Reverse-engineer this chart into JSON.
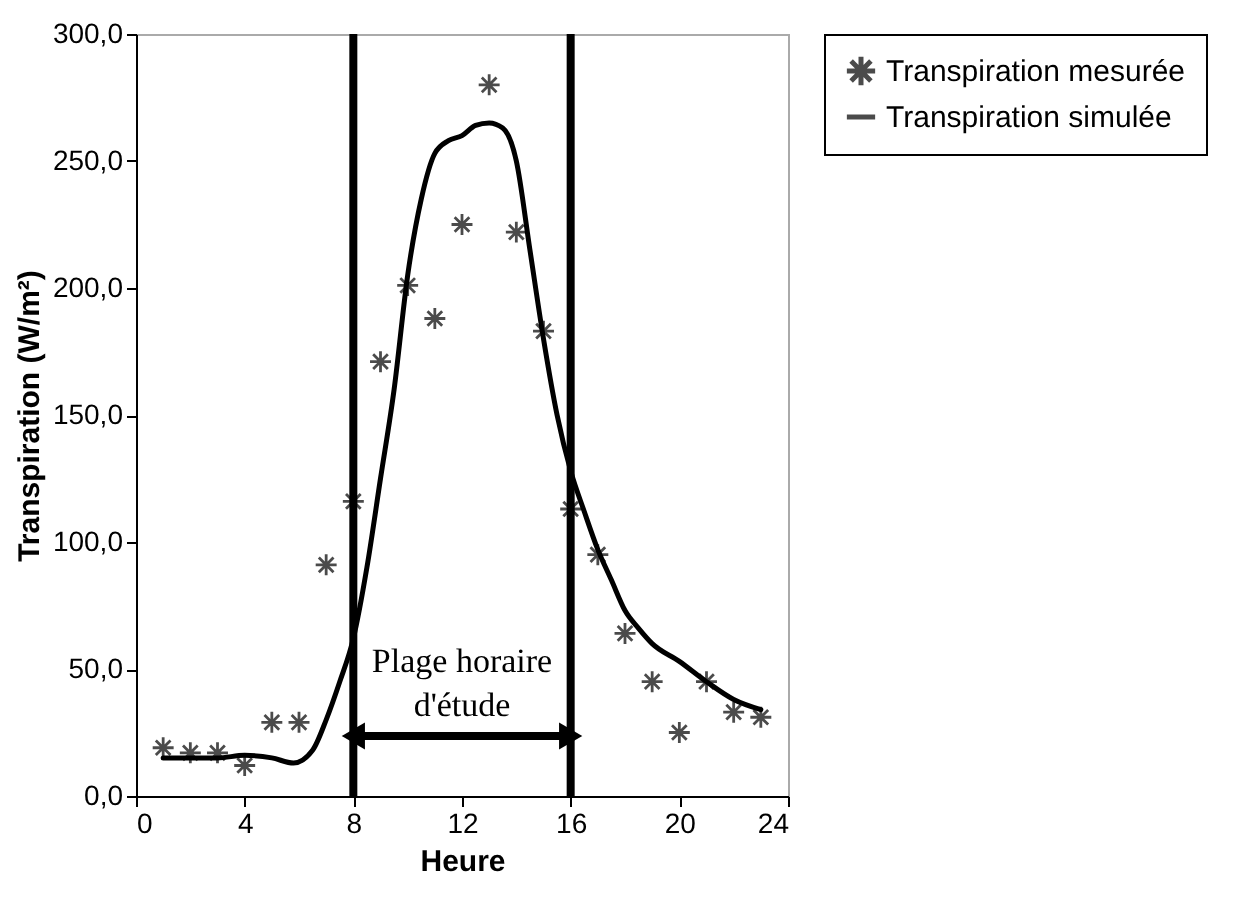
{
  "chart_data": {
    "type": "line",
    "xlabel": "Heure",
    "ylabel": "Transpiration (W/m²)",
    "xlim": [
      0,
      24
    ],
    "xticks": [
      0,
      4,
      8,
      12,
      16,
      20,
      24
    ],
    "ylim": [
      0,
      300
    ],
    "yticks": [
      {
        "value": 0,
        "label": "0,0"
      },
      {
        "value": 50,
        "label": "50,0"
      },
      {
        "value": 100,
        "label": "100,0"
      },
      {
        "value": 150,
        "label": "150,0"
      },
      {
        "value": 200,
        "label": "200,0"
      },
      {
        "value": 250,
        "label": "250,0"
      },
      {
        "value": 300,
        "label": "300,0"
      }
    ],
    "series": [
      {
        "name": "Transpiration mesurée",
        "type": "scatter",
        "marker": "cross",
        "color": "#000000",
        "x": [
          1,
          2,
          3,
          4,
          5,
          6,
          7,
          8,
          9,
          10,
          11,
          12,
          13,
          14,
          15,
          16,
          17,
          18,
          19,
          20,
          21,
          22,
          23
        ],
        "values": [
          19,
          17,
          17,
          12,
          29,
          29,
          91,
          116,
          171,
          201,
          188,
          225,
          280,
          222,
          183,
          113,
          95,
          64,
          45,
          25,
          45,
          33,
          31
        ]
      },
      {
        "name": "Transpiration simulée",
        "color": "#000000",
        "x": [
          1,
          2,
          3,
          4,
          5,
          5.8,
          6.5,
          7,
          7.5,
          8,
          8.5,
          9,
          9.5,
          10,
          10.5,
          11,
          11.5,
          12,
          12.5,
          13,
          13.5,
          14,
          14.5,
          15,
          15.5,
          16,
          16.5,
          17,
          17.5,
          18,
          18.5,
          19,
          20,
          21,
          22,
          23
        ],
        "values": [
          15,
          15,
          15,
          16,
          15,
          13,
          18,
          30,
          45,
          62,
          90,
          125,
          160,
          205,
          235,
          253,
          258,
          260,
          264,
          265,
          263,
          250,
          215,
          180,
          150,
          128,
          112,
          97,
          85,
          73,
          66,
          60,
          53,
          45,
          38,
          34
        ]
      }
    ],
    "ref_lines": [
      {
        "axis": "x",
        "value": 8
      },
      {
        "axis": "x",
        "value": 16
      }
    ],
    "annotations": [
      "Plage horaire d'étude"
    ],
    "legend": "top right",
    "grid": false
  }
}
